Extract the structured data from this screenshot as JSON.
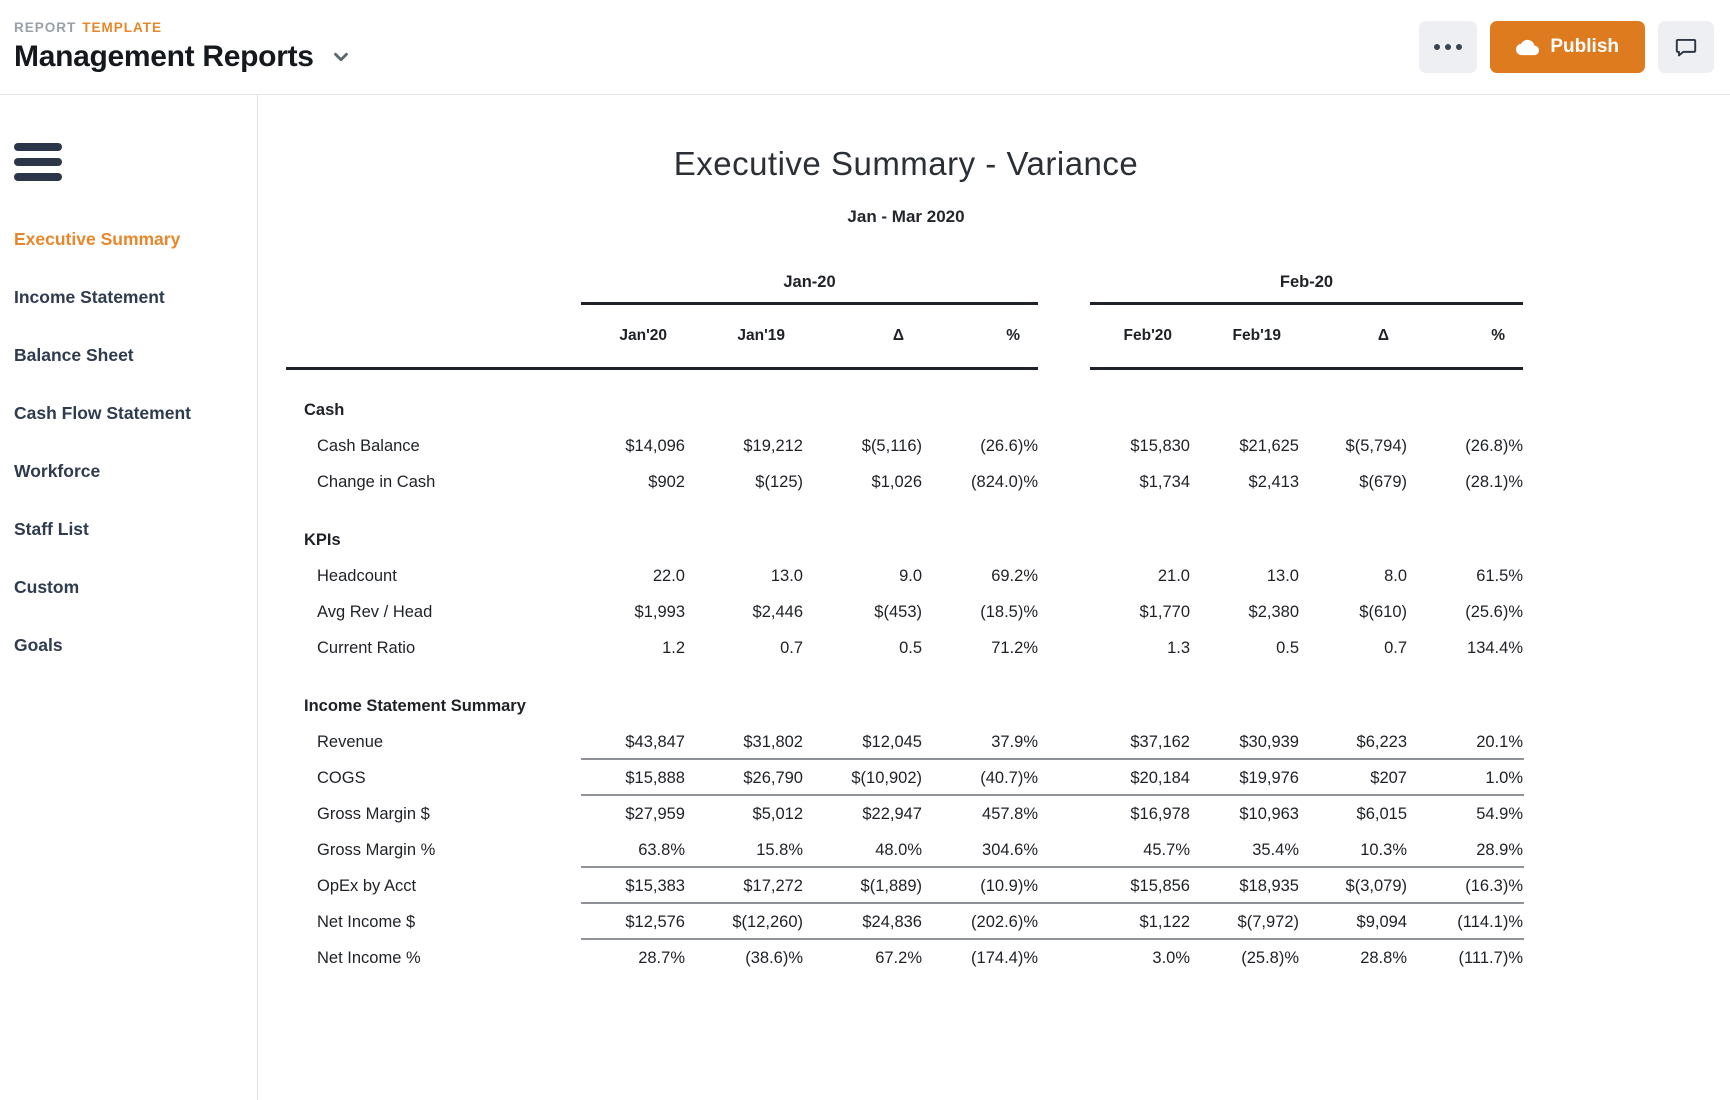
{
  "topbar": {
    "eyebrow": {
      "report": "REPORT",
      "template": "TEMPLATE"
    },
    "title": "Management Reports",
    "publish_label": "Publish"
  },
  "sidebar": {
    "items": [
      {
        "label": "Executive Summary",
        "active": true
      },
      {
        "label": "Income Statement",
        "active": false
      },
      {
        "label": "Balance Sheet",
        "active": false
      },
      {
        "label": "Cash Flow Statement",
        "active": false
      },
      {
        "label": "Workforce",
        "active": false
      },
      {
        "label": "Staff List",
        "active": false
      },
      {
        "label": "Custom",
        "active": false
      },
      {
        "label": "Goals",
        "active": false
      }
    ]
  },
  "report": {
    "title": "Executive Summary - Variance",
    "subtitle": "Jan - Mar 2020",
    "groups": [
      "Jan-20",
      "Feb-20"
    ],
    "columns": [
      "Jan'20",
      "Jan'19",
      "Δ",
      "%",
      "Feb'20",
      "Feb'19",
      "Δ",
      "%"
    ],
    "sections": [
      {
        "name": "Cash",
        "rows": [
          {
            "label": "Cash Balance",
            "underline": false,
            "values": [
              "$14,096",
              "$19,212",
              "$(5,116)",
              "(26.6)%",
              "$15,830",
              "$21,625",
              "$(5,794)",
              "(26.8)%"
            ]
          },
          {
            "label": "Change in Cash",
            "underline": false,
            "values": [
              "$902",
              "$(125)",
              "$1,026",
              "(824.0)%",
              "$1,734",
              "$2,413",
              "$(679)",
              "(28.1)%"
            ]
          }
        ]
      },
      {
        "name": "KPIs",
        "rows": [
          {
            "label": "Headcount",
            "underline": false,
            "values": [
              "22.0",
              "13.0",
              "9.0",
              "69.2%",
              "21.0",
              "13.0",
              "8.0",
              "61.5%"
            ]
          },
          {
            "label": "Avg Rev / Head",
            "underline": false,
            "values": [
              "$1,993",
              "$2,446",
              "$(453)",
              "(18.5)%",
              "$1,770",
              "$2,380",
              "$(610)",
              "(25.6)%"
            ]
          },
          {
            "label": "Current Ratio",
            "underline": false,
            "values": [
              "1.2",
              "0.7",
              "0.5",
              "71.2%",
              "1.3",
              "0.5",
              "0.7",
              "134.4%"
            ]
          }
        ]
      },
      {
        "name": "Income Statement Summary",
        "rows": [
          {
            "label": "Revenue",
            "underline": true,
            "values": [
              "$43,847",
              "$31,802",
              "$12,045",
              "37.9%",
              "$37,162",
              "$30,939",
              "$6,223",
              "20.1%"
            ]
          },
          {
            "label": "COGS",
            "underline": true,
            "values": [
              "$15,888",
              "$26,790",
              "$(10,902)",
              "(40.7)%",
              "$20,184",
              "$19,976",
              "$207",
              "1.0%"
            ]
          },
          {
            "label": "Gross Margin $",
            "underline": false,
            "values": [
              "$27,959",
              "$5,012",
              "$22,947",
              "457.8%",
              "$16,978",
              "$10,963",
              "$6,015",
              "54.9%"
            ]
          },
          {
            "label": "Gross Margin %",
            "underline": true,
            "values": [
              "63.8%",
              "15.8%",
              "48.0%",
              "304.6%",
              "45.7%",
              "35.4%",
              "10.3%",
              "28.9%"
            ]
          },
          {
            "label": "OpEx by Acct",
            "underline": true,
            "values": [
              "$15,383",
              "$17,272",
              "$(1,889)",
              "(10.9)%",
              "$15,856",
              "$18,935",
              "$(3,079)",
              "(16.3)%"
            ]
          },
          {
            "label": "Net Income $",
            "underline": true,
            "values": [
              "$12,576",
              "$(12,260)",
              "$24,836",
              "(202.6)%",
              "$1,122",
              "$(7,972)",
              "$9,094",
              "(114.1)%"
            ]
          },
          {
            "label": "Net Income %",
            "underline": false,
            "values": [
              "28.7%",
              "(38.6)%",
              "67.2%",
              "(174.4)%",
              "3.0%",
              "(25.8)%",
              "28.8%",
              "(111.7)%"
            ]
          }
        ]
      }
    ]
  },
  "colors": {
    "accent_orange": "#DF7B1F",
    "accent_text_orange": "#E8862B",
    "navy": "#2E3A4D"
  }
}
